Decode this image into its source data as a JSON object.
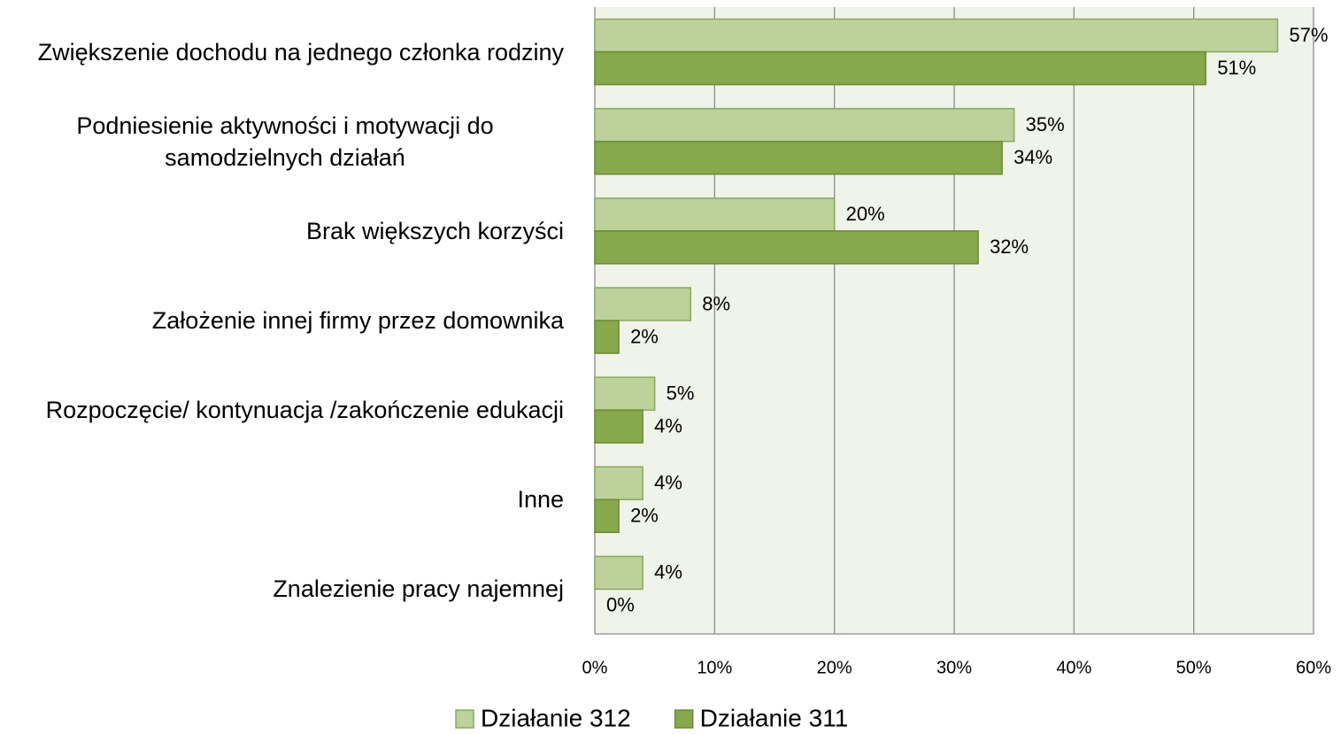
{
  "chart_data": {
    "type": "hbar",
    "categories": [
      "Zwiększenie dochodu na jednego członka rodziny",
      "Podniesienie aktywności i motywacji do samodzielnych działań",
      "Brak większych korzyści",
      "Założenie innej firmy przez domownika",
      "Rozpoczęcie/ kontynuacja /zakończenie edukacji",
      "Inne",
      "Znalezienie pracy najemnej"
    ],
    "series": [
      {
        "name": "Działanie 312",
        "color": "#bcd29a",
        "values": [
          57,
          35,
          20,
          8,
          5,
          4,
          4
        ],
        "value_labels": [
          "57%",
          "35%",
          "20%",
          "8%",
          "5%",
          "4%",
          "4%"
        ]
      },
      {
        "name": "Działanie 311",
        "color": "#88a84d",
        "values": [
          51,
          34,
          32,
          2,
          4,
          2,
          0
        ],
        "value_labels": [
          "51%",
          "34%",
          "32%",
          "2%",
          "4%",
          "2%",
          "0%"
        ]
      }
    ],
    "xlim": [
      0,
      60
    ],
    "xticks": [
      {
        "value": 0,
        "label": "0%"
      },
      {
        "value": 10,
        "label": "10%"
      },
      {
        "value": 20,
        "label": "20%"
      },
      {
        "value": 30,
        "label": "30%"
      },
      {
        "value": 40,
        "label": "40%"
      },
      {
        "value": 50,
        "label": "50%"
      },
      {
        "value": 60,
        "label": "60%"
      }
    ],
    "grid": true,
    "legend": "bottom"
  }
}
